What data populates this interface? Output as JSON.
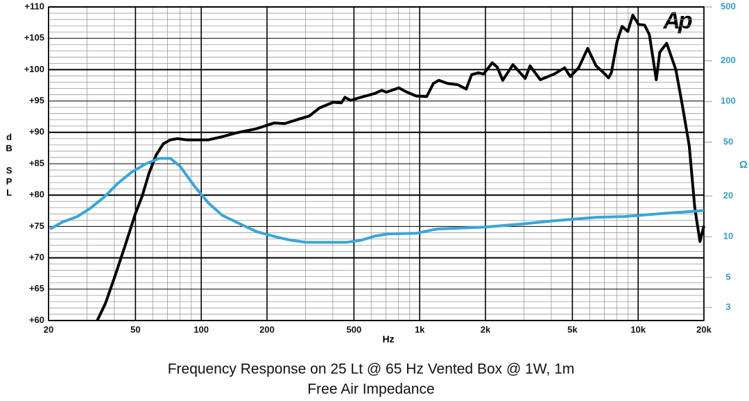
{
  "chart_data": {
    "type": "line",
    "title": "Frequency Response on 25 Lt @ 65 Hz Vented Box @ 1W, 1m",
    "subtitle": "Free Air Impedance",
    "logo": "Ap",
    "x_label": "Hz",
    "y_label": "dB SPL",
    "y2_label": "Ω",
    "xscale": "log",
    "y2scale": "log",
    "grid": true,
    "xlim": [
      20,
      20000
    ],
    "ylim": [
      60,
      110
    ],
    "y2lim": [
      2.4,
      500
    ],
    "xticks": [
      20,
      50,
      100,
      200,
      500,
      {
        "value": 1000,
        "label": "1k"
      },
      {
        "value": 2000,
        "label": "2k"
      },
      {
        "value": 5000,
        "label": "5k"
      },
      {
        "value": 10000,
        "label": "10k"
      },
      {
        "value": 20000,
        "label": "20k"
      }
    ],
    "x_minor_ticks": [
      30,
      40,
      60,
      70,
      80,
      90,
      300,
      400,
      600,
      700,
      800,
      900,
      3000,
      4000,
      6000,
      7000,
      8000,
      9000
    ],
    "yticks": [
      {
        "value": 60,
        "label": "+60"
      },
      {
        "value": 65,
        "label": "+65"
      },
      {
        "value": 70,
        "label": "+70"
      },
      {
        "value": 75,
        "label": "+75"
      },
      {
        "value": 80,
        "label": "+80"
      },
      {
        "value": 85,
        "label": "+85"
      },
      {
        "value": 90,
        "label": "+90"
      },
      {
        "value": 95,
        "label": "+95"
      },
      {
        "value": 100,
        "label": "+100"
      },
      {
        "value": 105,
        "label": "+105"
      },
      {
        "value": 110,
        "label": "+110"
      }
    ],
    "y_minor_ticks": [
      61,
      62,
      63,
      64,
      66,
      67,
      68,
      69,
      71,
      72,
      73,
      74,
      76,
      77,
      78,
      79,
      81,
      82,
      83,
      84,
      86,
      87,
      88,
      89,
      91,
      92,
      93,
      94,
      96,
      97,
      98,
      99,
      101,
      102,
      103,
      104,
      106,
      107,
      108,
      109
    ],
    "y2ticks": [
      3,
      5,
      10,
      20,
      50,
      100,
      200,
      500
    ],
    "series": [
      {
        "name": "SPL",
        "color": "#000000",
        "axis": "y",
        "x": [
          33.4,
          36.4,
          40.1,
          44.7,
          49.9,
          53.6,
          57.7,
          62.2,
          67.1,
          72.2,
          77.7,
          86.1,
          99.9,
          107.7,
          124.6,
          144,
          179.5,
          215.9,
          241,
          279,
          312,
          348,
          402,
          438,
          455,
          483,
          539,
          622,
          670,
          704,
          803,
          863,
          963,
          1076,
          1155,
          1225,
          1340,
          1494,
          1632,
          1729,
          1856,
          1960,
          2148,
          2265,
          2400,
          2671,
          3041,
          3200,
          3566,
          4129,
          4608,
          4885,
          5340,
          5873,
          6420,
          6900,
          7320,
          7540,
          8010,
          8440,
          8960,
          9450,
          10040,
          10700,
          11250,
          12100,
          12560,
          13510,
          14870,
          15900,
          17130,
          18170,
          19180,
          20000
        ],
        "values": [
          60,
          62.7,
          66.9,
          71.8,
          77,
          79.8,
          83.5,
          86.4,
          88.2,
          88.8,
          89,
          88.8,
          88.8,
          88.8,
          89.3,
          89.9,
          90.6,
          91.5,
          91.4,
          92.1,
          92.6,
          93.9,
          94.8,
          94.7,
          95.6,
          95.1,
          95.6,
          96.2,
          96.7,
          96.4,
          97.1,
          96.5,
          95.8,
          95.7,
          97.8,
          98.3,
          97.8,
          97.6,
          96.9,
          99.2,
          99.5,
          99.3,
          101.1,
          100.4,
          98.3,
          100.8,
          98.6,
          100.6,
          98.4,
          99.3,
          100.3,
          98.9,
          100.3,
          103.4,
          100.6,
          99.6,
          98.7,
          99.5,
          104.5,
          106.9,
          106.1,
          108.7,
          107.2,
          107.1,
          105.6,
          98.4,
          102.8,
          104.2,
          100,
          94.5,
          87.9,
          77.9,
          72.6,
          75.1
        ]
      },
      {
        "name": "Impedance",
        "color": "#3aa6d8",
        "axis": "y2",
        "x": [
          20.3,
          23.1,
          27.1,
          31,
          35.9,
          41.5,
          48,
          55.6,
          64.3,
          72.2,
          80.2,
          93,
          107.7,
          124.6,
          149.5,
          179.5,
          223,
          259,
          300,
          464,
          539,
          622,
          720,
          963,
          1200,
          2000,
          2900,
          4130,
          6420,
          8660,
          12560,
          20000
        ],
        "values": [
          11.4,
          12.8,
          14.1,
          16.2,
          19.6,
          24.8,
          30,
          34.5,
          38,
          38,
          33,
          23.7,
          17.8,
          14.4,
          12.5,
          10.9,
          9.9,
          9.4,
          9.1,
          9.1,
          9.4,
          10.1,
          10.5,
          10.6,
          11.4,
          11.8,
          12.4,
          13.1,
          13.9,
          14.1,
          14.8,
          15.6
        ]
      }
    ]
  }
}
